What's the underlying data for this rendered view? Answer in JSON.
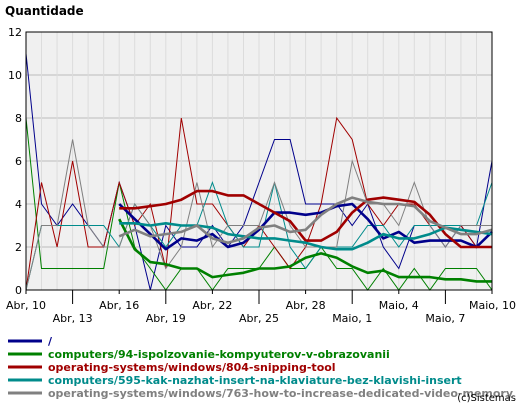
{
  "chart_data": {
    "type": "line",
    "ylabel": "Quantidade",
    "ylim": [
      0,
      12
    ],
    "y_ticks": [
      "0",
      "2",
      "4",
      "6",
      "8",
      "10",
      "12"
    ],
    "x": [
      "Abr, 10",
      "Abr, 11",
      "Abr, 12",
      "Abr, 13",
      "Abr, 14",
      "Abr, 15",
      "Abr, 16",
      "Abr, 17",
      "Abr, 18",
      "Abr, 19",
      "Abr, 20",
      "Abr, 21",
      "Abr, 22",
      "Abr, 23",
      "Abr, 24",
      "Abr, 25",
      "Abr, 26",
      "Abr, 27",
      "Abr, 28",
      "Abr, 29",
      "Abr, 30",
      "Maio, 1",
      "Maio, 2",
      "Maio, 3",
      "Maio, 4",
      "Maio, 5",
      "Maio, 6",
      "Maio, 7",
      "Maio, 8",
      "Maio, 9",
      "Maio, 10"
    ],
    "x_tick_labels": [
      {
        "label": "Abr, 10",
        "row": 0
      },
      {
        "label": "Abr, 13",
        "row": 1
      },
      {
        "label": "Abr, 16",
        "row": 0
      },
      {
        "label": "Abr, 19",
        "row": 1
      },
      {
        "label": "Abr, 22",
        "row": 0
      },
      {
        "label": "Abr, 25",
        "row": 1
      },
      {
        "label": "Abr, 28",
        "row": 0
      },
      {
        "label": "Maio, 1",
        "row": 1
      },
      {
        "label": "Maio, 4",
        "row": 0
      },
      {
        "label": "Maio, 7",
        "row": 1
      },
      {
        "label": "Maio, 10",
        "row": 0
      }
    ],
    "grid": true,
    "legend_position": "bottom",
    "series": [
      {
        "name": "/",
        "color": "#00008b",
        "daily": [
          11,
          4,
          3,
          4,
          3,
          2,
          5,
          3,
          0,
          3,
          2,
          2,
          3,
          2,
          3,
          5,
          7,
          7,
          4,
          4,
          4,
          3,
          4,
          2,
          1,
          3,
          3,
          2,
          3,
          2,
          6
        ],
        "avg": [
          null,
          null,
          null,
          null,
          null,
          null,
          4.0,
          3.3,
          2.6,
          1.9,
          2.4,
          2.3,
          2.6,
          2.0,
          2.2,
          2.8,
          3.6,
          3.6,
          3.5,
          3.6,
          3.9,
          4.0,
          3.3,
          2.4,
          2.7,
          2.2,
          2.3,
          2.3,
          2.3,
          2.0,
          2.7
        ]
      },
      {
        "name": "computers/94-ispolzovanie-kompyuterov-v-obrazovanii",
        "color": "#008000",
        "daily": [
          8,
          1,
          1,
          1,
          1,
          1,
          5,
          2,
          1,
          0,
          1,
          1,
          0,
          1,
          1,
          1,
          2,
          1,
          1,
          2,
          1,
          1,
          0,
          1,
          0,
          1,
          0,
          1,
          1,
          1,
          0
        ],
        "avg": [
          null,
          null,
          null,
          null,
          null,
          null,
          3.3,
          1.9,
          1.3,
          1.2,
          1.0,
          1.0,
          0.6,
          0.7,
          0.8,
          1.0,
          1.0,
          1.1,
          1.5,
          1.7,
          1.5,
          1.1,
          0.8,
          0.9,
          0.6,
          0.6,
          0.6,
          0.5,
          0.5,
          0.4,
          0.4
        ]
      },
      {
        "name": "operating-systems/windows/804-snipping-tool",
        "color": "#a00000",
        "daily": [
          0,
          5,
          2,
          6,
          2,
          2,
          5,
          3,
          4,
          1,
          8,
          4,
          4,
          3,
          2,
          3,
          2,
          1,
          2,
          4,
          8,
          7,
          4,
          3,
          4,
          4,
          3,
          3,
          3,
          2,
          2
        ],
        "avg": [
          null,
          null,
          null,
          null,
          null,
          null,
          3.8,
          3.8,
          3.9,
          4.0,
          4.2,
          4.6,
          4.6,
          4.4,
          4.4,
          4.0,
          3.6,
          3.2,
          2.3,
          2.3,
          2.7,
          3.6,
          4.2,
          4.3,
          4.2,
          4.1,
          3.5,
          2.6,
          2.0,
          2.0,
          2.0
        ]
      },
      {
        "name": "computers/595-kak-nazhat-insert-na-klaviature-bez-klavishi-insert",
        "color": "#008b8b",
        "daily": [
          0,
          3,
          3,
          3,
          3,
          3,
          2,
          4,
          3,
          2,
          3,
          3,
          5,
          3,
          2,
          2,
          5,
          2,
          1,
          2,
          2,
          2,
          3,
          3,
          2,
          3,
          3,
          3,
          3,
          3,
          5
        ],
        "avg": [
          null,
          null,
          null,
          null,
          null,
          null,
          3.1,
          3.1,
          3.0,
          3.1,
          3.0,
          3.0,
          2.9,
          2.6,
          2.5,
          2.4,
          2.4,
          2.3,
          2.2,
          2.0,
          1.9,
          1.9,
          2.2,
          2.6,
          2.4,
          2.4,
          2.6,
          2.9,
          2.8,
          2.7,
          2.6
        ]
      },
      {
        "name": "operating-systems/windows/763-how-to-increase-dedicated-video-memory",
        "color": "#808080",
        "daily": [
          0,
          3,
          3,
          7,
          3,
          2,
          2,
          4,
          3,
          1,
          2,
          5,
          2,
          3,
          3,
          3,
          5,
          3,
          2,
          2,
          2,
          6,
          4,
          4,
          3,
          5,
          3,
          2,
          3,
          3,
          3
        ],
        "avg": [
          null,
          null,
          null,
          null,
          null,
          null,
          2.5,
          2.8,
          2.5,
          2.6,
          2.7,
          3.0,
          2.4,
          2.2,
          2.4,
          2.9,
          3.0,
          2.7,
          2.8,
          3.5,
          4.0,
          4.3,
          4.1,
          4.0,
          4.0,
          3.9,
          3.2,
          2.9,
          2.6,
          2.6,
          2.8
        ]
      }
    ]
  },
  "watermark": "(c)Sistemas"
}
